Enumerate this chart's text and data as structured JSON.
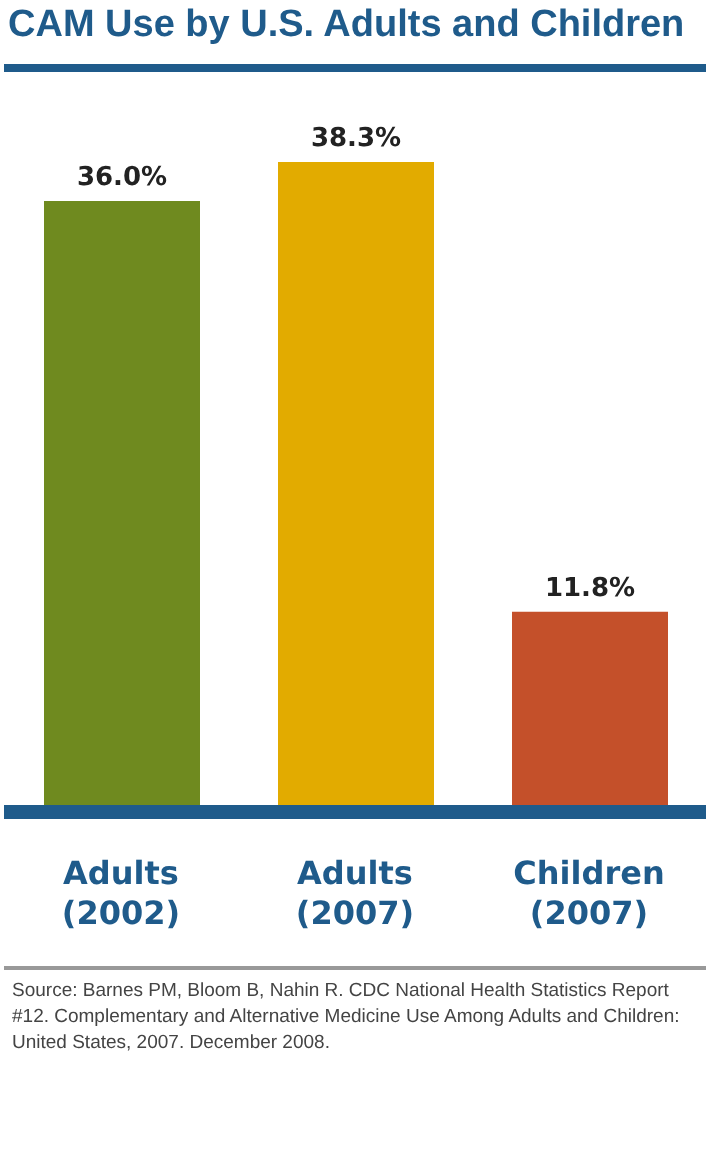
{
  "chart_data": {
    "type": "bar",
    "title": "CAM Use by U.S. Adults and Children",
    "categories": [
      "Adults (2002)",
      "Adults (2007)",
      "Children (2007)"
    ],
    "values": [
      36.0,
      38.3,
      11.8
    ],
    "colors": [
      "#6f8a1f",
      "#e2ab00",
      "#c4502a"
    ],
    "value_labels": [
      "36.0%",
      "38.3%",
      "11.8%"
    ],
    "annotations": [
      "Source: Barnes PM, Bloom B, Nahin R. CDC National Health Statistics Report #12. Complementary and Alternative Medicine Use Among Adults and Children: United States, 2007. December 2008."
    ]
  }
}
